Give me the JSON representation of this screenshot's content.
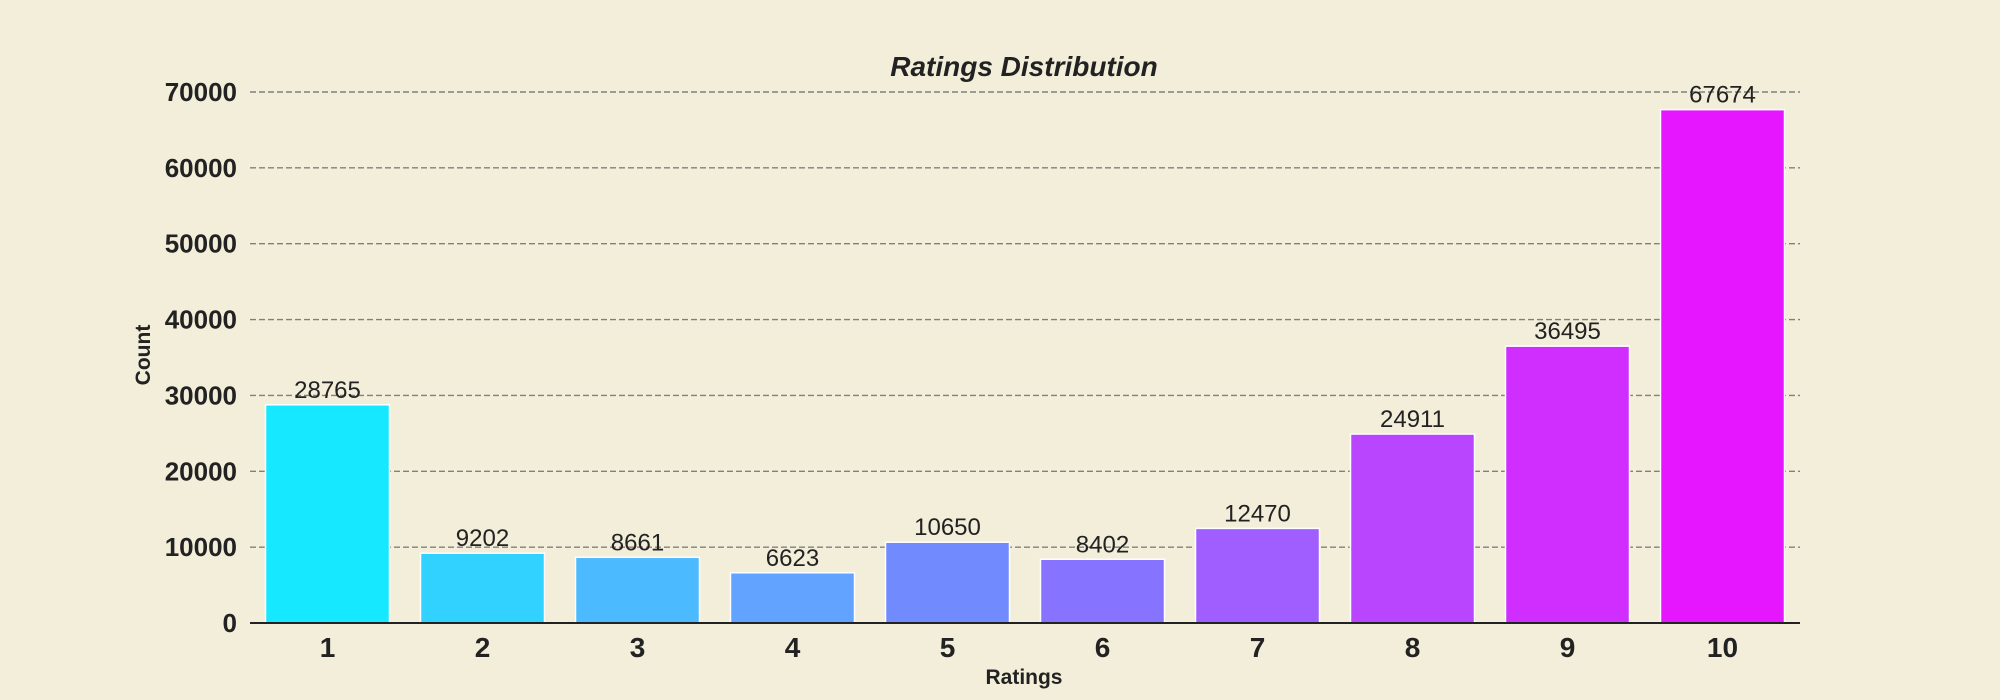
{
  "chart_data": {
    "type": "bar",
    "title": "Ratings Distribution",
    "xlabel": "Ratings",
    "ylabel": "Count",
    "categories": [
      "1",
      "2",
      "3",
      "4",
      "5",
      "6",
      "7",
      "8",
      "9",
      "10"
    ],
    "values": [
      28765,
      9202,
      8661,
      6623,
      10650,
      8402,
      12470,
      24911,
      36495,
      67674
    ],
    "data_labels": [
      "28765",
      "9202",
      "8661",
      "6623",
      "10650",
      "8402",
      "12470",
      "24911",
      "36495",
      "67674"
    ],
    "ylim": [
      0,
      70000
    ],
    "yticks": [
      0,
      10000,
      20000,
      30000,
      40000,
      50000,
      60000,
      70000
    ],
    "ytick_labels": [
      "0",
      "10000",
      "20000",
      "30000",
      "40000",
      "50000",
      "60000",
      "70000"
    ],
    "grid": true,
    "bar_colors": [
      "#16e9ff",
      "#31d2ff",
      "#4cbaff",
      "#61a3ff",
      "#718bff",
      "#8673ff",
      "#a05dff",
      "#ba45ff",
      "#d02eff",
      "#e616ff"
    ],
    "background": "#f2eed9"
  }
}
